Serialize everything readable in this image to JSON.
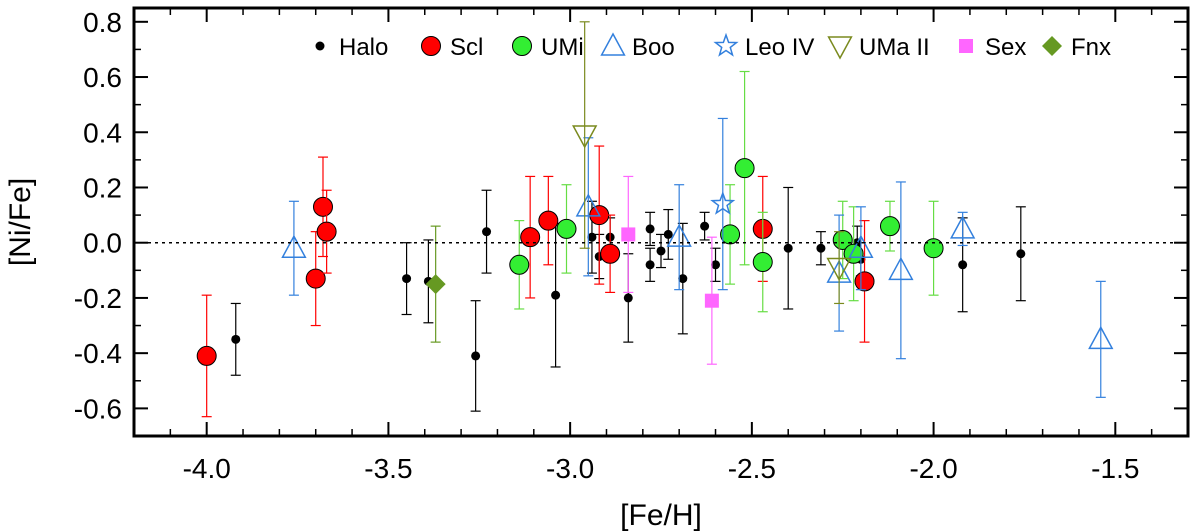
{
  "chart_data": {
    "type": "scatter",
    "xlabel": "[Fe/H]",
    "ylabel": "[Ni/Fe]",
    "xlim": [
      -4.2,
      -1.3
    ],
    "ylim": [
      -0.7,
      0.85
    ],
    "x_ticks": [
      "-4.0",
      "-3.5",
      "-3.0",
      "-2.5",
      "-2.0",
      "-1.5"
    ],
    "x_tick_values": [
      -4.0,
      -3.5,
      -3.0,
      -2.5,
      -2.0,
      -1.5
    ],
    "y_ticks": [
      "0.8",
      "0.6",
      "0.4",
      "0.2",
      "0.0",
      "-0.2",
      "-0.4",
      "-0.6"
    ],
    "y_tick_values": [
      0.8,
      0.6,
      0.4,
      0.2,
      0.0,
      -0.2,
      -0.4,
      -0.6
    ],
    "reference_line": 0.0,
    "legend_position": "top",
    "series": [
      {
        "name": "Halo",
        "marker": "dot",
        "color": "#000000",
        "points": [
          {
            "x": -3.92,
            "y": -0.35,
            "err": 0.13
          },
          {
            "x": -3.45,
            "y": -0.13,
            "err": 0.13
          },
          {
            "x": -3.39,
            "y": -0.14,
            "err": 0.15
          },
          {
            "x": -3.26,
            "y": -0.41,
            "err": 0.2
          },
          {
            "x": -3.23,
            "y": 0.04,
            "err": 0.15
          },
          {
            "x": -3.04,
            "y": -0.19,
            "err": 0.26
          },
          {
            "x": -2.94,
            "y": 0.02,
            "err": 0.13
          },
          {
            "x": -2.92,
            "y": -0.05,
            "err": 0.08
          },
          {
            "x": -2.89,
            "y": 0.02,
            "err": 0.07
          },
          {
            "x": -2.84,
            "y": -0.2,
            "err": 0.16
          },
          {
            "x": -2.78,
            "y": 0.05,
            "err": 0.06
          },
          {
            "x": -2.78,
            "y": -0.08,
            "err": 0.06
          },
          {
            "x": -2.75,
            "y": -0.03,
            "err": 0.06
          },
          {
            "x": -2.73,
            "y": 0.03,
            "err": 0.09
          },
          {
            "x": -2.69,
            "y": -0.13,
            "err": 0.2
          },
          {
            "x": -2.63,
            "y": 0.06,
            "err": 0.05
          },
          {
            "x": -2.6,
            "y": -0.08,
            "err": 0.06
          },
          {
            "x": -2.4,
            "y": -0.02,
            "err": 0.22
          },
          {
            "x": -2.31,
            "y": -0.02,
            "err": 0.06
          },
          {
            "x": -2.21,
            "y": 0.0,
            "err": 0.06
          },
          {
            "x": -2.2,
            "y": -0.06,
            "err": 0.06
          },
          {
            "x": -1.92,
            "y": -0.08,
            "err": 0.17
          },
          {
            "x": -1.76,
            "y": -0.04,
            "err": 0.17
          }
        ]
      },
      {
        "name": "Scl",
        "marker": "circle",
        "color": "#ff0000",
        "points": [
          {
            "x": -4.0,
            "y": -0.41,
            "err": 0.22
          },
          {
            "x": -3.7,
            "y": -0.13,
            "err": 0.17
          },
          {
            "x": -3.68,
            "y": 0.13,
            "err": 0.18
          },
          {
            "x": -3.67,
            "y": 0.04,
            "err": 0.15
          },
          {
            "x": -3.11,
            "y": 0.02,
            "err": 0.22
          },
          {
            "x": -3.06,
            "y": 0.08,
            "err": 0.16
          },
          {
            "x": -2.92,
            "y": 0.1,
            "err": 0.25
          },
          {
            "x": -2.89,
            "y": -0.04,
            "err": 0.14
          },
          {
            "x": -2.47,
            "y": 0.05,
            "err": 0.19
          },
          {
            "x": -2.19,
            "y": -0.14,
            "err": 0.22
          }
        ]
      },
      {
        "name": "UMi",
        "marker": "circle",
        "color": "#33ee33",
        "points": [
          {
            "x": -3.14,
            "y": -0.08,
            "err": 0.16
          },
          {
            "x": -3.01,
            "y": 0.05,
            "err": 0.16
          },
          {
            "x": -2.56,
            "y": 0.03,
            "err": 0.18
          },
          {
            "x": -2.52,
            "y": 0.27,
            "err": 0.35
          },
          {
            "x": -2.47,
            "y": -0.07,
            "err": 0.18
          },
          {
            "x": -2.25,
            "y": 0.01,
            "err": 0.14
          },
          {
            "x": -2.22,
            "y": -0.04,
            "err": 0.17
          },
          {
            "x": -2.12,
            "y": 0.06,
            "err": 0.09
          },
          {
            "x": -2.0,
            "y": -0.02,
            "err": 0.17
          }
        ]
      },
      {
        "name": "Boo",
        "marker": "triangle-up",
        "color": "#3380dd",
        "points": [
          {
            "x": -3.76,
            "y": -0.02,
            "err": 0.17
          },
          {
            "x": -2.95,
            "y": 0.13,
            "err": 0.25
          },
          {
            "x": -2.7,
            "y": 0.02,
            "err": 0.19
          },
          {
            "x": -2.26,
            "y": -0.11,
            "err": 0.21
          },
          {
            "x": -2.2,
            "y": -0.02,
            "err": 0.15
          },
          {
            "x": -2.09,
            "y": -0.1,
            "err": 0.32
          },
          {
            "x": -1.92,
            "y": 0.05,
            "err": 0.06
          },
          {
            "x": -1.54,
            "y": -0.35,
            "err": 0.21
          }
        ]
      },
      {
        "name": "Leo IV",
        "marker": "star",
        "color": "#3380dd",
        "points": [
          {
            "x": -2.58,
            "y": 0.14,
            "err": 0.31
          }
        ]
      },
      {
        "name": "UMa II",
        "marker": "triangle-down",
        "color": "#7a8a1e",
        "points": [
          {
            "x": -2.96,
            "y": 0.39,
            "err": 0.41
          },
          {
            "x": -2.26,
            "y": -0.09,
            "err": 0.13
          }
        ]
      },
      {
        "name": "Sex",
        "marker": "square",
        "color": "#ff66ff",
        "points": [
          {
            "x": -2.84,
            "y": 0.03,
            "err": 0.21
          },
          {
            "x": -2.61,
            "y": -0.21,
            "err": 0.23
          }
        ]
      },
      {
        "name": "Fnx",
        "marker": "diamond",
        "color": "#669922",
        "points": [
          {
            "x": -3.37,
            "y": -0.15,
            "err": 0.21
          }
        ]
      }
    ]
  }
}
